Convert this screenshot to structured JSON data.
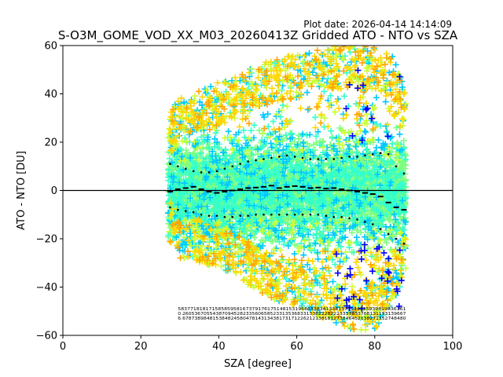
{
  "plot_date": "Plot date: 2026-04-14 14:14:09",
  "chart_data": {
    "type": "scatter",
    "title": "S-O3M_GOME_VOD_XX_M03_20260413Z Gridded ATO - NTO vs SZA",
    "xlabel": "SZA [degree]",
    "ylabel": "ATO - NTO [DU]",
    "xlim": [
      0,
      100
    ],
    "ylim": [
      -60,
      60
    ],
    "xticks": [
      "0",
      "20",
      "40",
      "60",
      "80",
      "100"
    ],
    "yticks": [
      "−60",
      "−40",
      "−20",
      "0",
      "20",
      "40",
      "60"
    ],
    "marker": "plus",
    "colormap": [
      "#0000ff",
      "#00c8ff",
      "#33ffcc",
      "#7fff7f",
      "#ccff33",
      "#ffd700",
      "#ffa500"
    ],
    "reference_line_y": 0,
    "envelope": {
      "sza": [
        27,
        30,
        35,
        40,
        45,
        50,
        55,
        60,
        65,
        70,
        75,
        80,
        85,
        88
      ],
      "max": [
        32,
        38,
        42,
        45,
        48,
        52,
        55,
        56,
        58,
        60,
        60,
        60,
        55,
        40
      ],
      "min": [
        -20,
        -28,
        -30,
        -32,
        -36,
        -42,
        -46,
        -48,
        -52,
        -55,
        -58,
        -58,
        -45,
        -35
      ]
    },
    "series": [
      {
        "name": "mean",
        "x": [
          27.5,
          29.5,
          31.5,
          33.5,
          35.5,
          37.5,
          39.5,
          41.5,
          43.5,
          45.5,
          47.5,
          49.5,
          51.5,
          53.5,
          55.5,
          57.5,
          59.5,
          61.5,
          63.5,
          65.5,
          67.5,
          69.5,
          71.5,
          73.5,
          75.5,
          77.5,
          79.5,
          81.5,
          83.5,
          85.5,
          87.5
        ],
        "y": [
          -0.5,
          0.5,
          1.0,
          1.5,
          0.5,
          -0.5,
          -1.0,
          -0.5,
          0.0,
          0.5,
          1.0,
          1.2,
          1.5,
          2.0,
          1.0,
          1.5,
          1.8,
          1.5,
          1.0,
          1.2,
          0.8,
          1.0,
          0.5,
          0.0,
          -0.5,
          -1.0,
          -1.5,
          -2.5,
          -5.0,
          -7.0,
          -8.0
        ]
      },
      {
        "name": "mean_plus_std",
        "x": [
          27.5,
          29.5,
          31.5,
          33.5,
          35.5,
          37.5,
          39.5,
          41.5,
          43.5,
          45.5,
          47.5,
          49.5,
          51.5,
          53.5,
          55.5,
          57.5,
          59.5,
          61.5,
          63.5,
          65.5,
          67.5,
          69.5,
          71.5,
          73.5,
          75.5,
          77.5,
          79.5,
          81.5,
          83.5,
          85.5,
          87.5
        ],
        "y": [
          11,
          10,
          9,
          8,
          7.5,
          7.5,
          8,
          9,
          10,
          11,
          12,
          12.5,
          13,
          13.5,
          14,
          14.5,
          14,
          13.5,
          13,
          13,
          13,
          13,
          13.5,
          14,
          14,
          14.5,
          15,
          15.5,
          15,
          10,
          7
        ]
      },
      {
        "name": "mean_minus_std",
        "x": [
          27.5,
          29.5,
          31.5,
          33.5,
          35.5,
          37.5,
          39.5,
          41.5,
          43.5,
          45.5,
          47.5,
          49.5,
          51.5,
          53.5,
          55.5,
          57.5,
          59.5,
          61.5,
          63.5,
          65.5,
          67.5,
          69.5,
          71.5,
          73.5,
          75.5,
          77.5,
          79.5,
          81.5,
          83.5,
          85.5,
          87.5
        ],
        "y": [
          -7,
          -8,
          -8.5,
          -9,
          -10,
          -10.5,
          -10.5,
          -11,
          -11,
          -10.5,
          -10.5,
          -10,
          -10,
          -10,
          -10,
          -10,
          -10,
          -10,
          -10,
          -10,
          -10.5,
          -11,
          -11,
          -11.5,
          -12,
          -13,
          -14,
          -16,
          -18,
          -20,
          -22
        ]
      }
    ],
    "bin_count_rows": [
      "58377181817158585958167379176175148153196863383413381373144335939819836161",
      "0.26053670554387094528233560658523313536833133822282223337833768131193139667",
      "6.67873898481538482458047814313438173171226212138181273846452138271352748480"
    ]
  }
}
